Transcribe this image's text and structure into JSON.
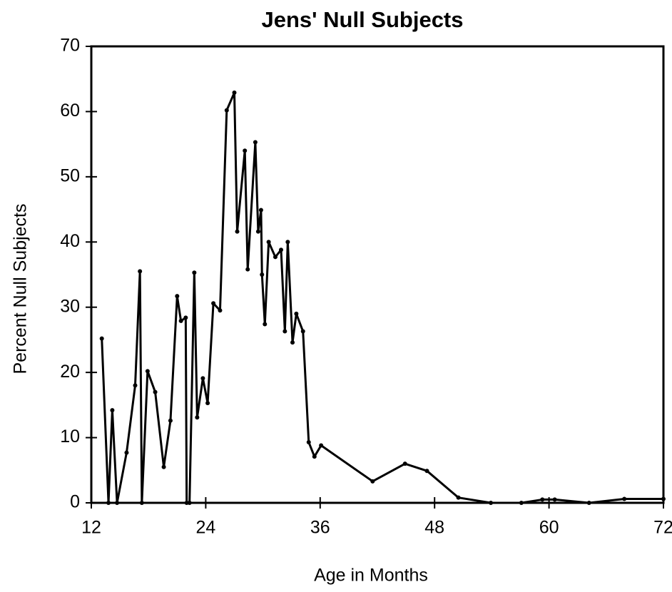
{
  "chart_data": {
    "type": "line",
    "title": "Jens' Null Subjects",
    "xlabel": "Age in Months",
    "ylabel": "Percent Null Subjects",
    "x": [
      13.1,
      13.8,
      14.2,
      14.7,
      15.7,
      16.6,
      17.1,
      17.3,
      17.9,
      18.7,
      19.6,
      20.3,
      21.0,
      21.4,
      21.9,
      22.0,
      22.3,
      22.8,
      23.1,
      23.7,
      24.2,
      24.8,
      25.5,
      26.2,
      27.0,
      27.3,
      28.1,
      28.4,
      29.2,
      29.5,
      29.8,
      29.9,
      30.2,
      30.6,
      31.3,
      31.9,
      32.3,
      32.6,
      33.1,
      33.5,
      34.2,
      34.8,
      35.4,
      36.1,
      41.5,
      44.9,
      47.2,
      50.5,
      53.9,
      57.1,
      59.3,
      60.6,
      64.2,
      67.9,
      72
    ],
    "series": [
      {
        "name": "Null subjects",
        "color": "#000000",
        "values": [
          25.2,
          0,
          14.2,
          0,
          7.7,
          18,
          35.5,
          0,
          20.2,
          17,
          5.5,
          12.6,
          31.7,
          27.9,
          28.4,
          0,
          0,
          35.3,
          13.1,
          19.1,
          15.3,
          30.6,
          29.5,
          60.2,
          62.9,
          41.6,
          54,
          35.8,
          55.3,
          41.6,
          44.9,
          35,
          27.4,
          40,
          37.7,
          38.8,
          26.3,
          40,
          24.6,
          29,
          26.3,
          9.3,
          7.1,
          8.8,
          3.3,
          6,
          4.9,
          0.8,
          0,
          0,
          0.5,
          0.5,
          0,
          0.6,
          0.6
        ]
      }
    ],
    "xlim": [
      12,
      72
    ],
    "ylim": [
      0,
      70
    ],
    "xticks": [
      12,
      24,
      36,
      48,
      60,
      72
    ],
    "yticks": [
      0,
      10,
      20,
      30,
      40,
      50,
      60,
      70
    ],
    "grid": false
  }
}
